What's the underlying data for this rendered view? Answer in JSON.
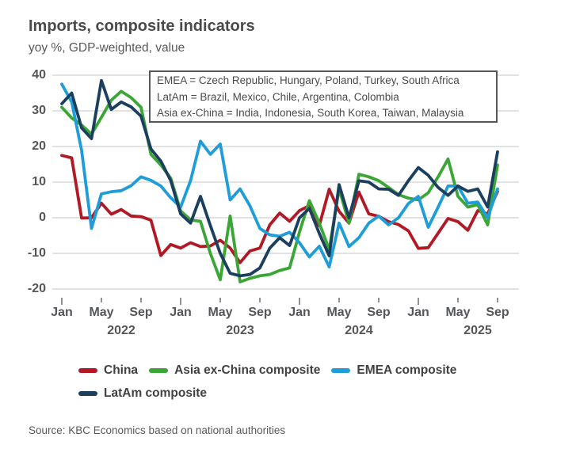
{
  "header": {
    "title": "Imports, composite indicators",
    "subtitle": "yoy %, GDP-weighted, value"
  },
  "annotation": {
    "lines": [
      "EMEA = Czech Republic, Hungary, Poland, Turkey, South Africa",
      "LatAm = Brazil, Mexico, Chile, Argentina, Colombia",
      "Asia ex-China = India, Indonesia, South Korea, Taiwan, Malaysia"
    ]
  },
  "axis": {
    "y_tick_labels": [
      "40",
      "30",
      "20",
      "10",
      "0",
      "-10",
      "-20"
    ],
    "month_tick_labels": [
      "Jan",
      "May",
      "Sep"
    ],
    "year_labels": [
      "2022",
      "2023",
      "2024",
      "2025"
    ]
  },
  "legend": {
    "items": [
      {
        "label": "China",
        "series": "china"
      },
      {
        "label": "Asia ex-China composite",
        "series": "asia"
      },
      {
        "label": "EMEA composite",
        "series": "emea"
      },
      {
        "label": "LatAm composite",
        "series": "latam"
      }
    ]
  },
  "source": {
    "text": "Source: KBC Economics based on national authorities"
  },
  "colors": {
    "china": "#b11a25",
    "asia": "#3aa635",
    "emea": "#1f9dd9",
    "latam": "#1c3f60",
    "grid": "#d8d8d9",
    "axis_text": "#55565a"
  },
  "chart_data": {
    "type": "line",
    "title": "Imports, composite indicators",
    "ylabel": "yoy %, GDP-weighted, value",
    "ylim": [
      -20,
      40
    ],
    "ytick_step": 10,
    "grid": "horizontal",
    "legend_position": "bottom",
    "months": [
      "2022-01",
      "2022-02",
      "2022-03",
      "2022-04",
      "2022-05",
      "2022-06",
      "2022-07",
      "2022-08",
      "2022-09",
      "2022-10",
      "2022-11",
      "2022-12",
      "2023-01",
      "2023-02",
      "2023-03",
      "2023-04",
      "2023-05",
      "2023-06",
      "2023-07",
      "2023-08",
      "2023-09",
      "2023-10",
      "2023-11",
      "2023-12",
      "2024-01",
      "2024-02",
      "2024-03",
      "2024-04",
      "2024-05",
      "2024-06",
      "2024-07",
      "2024-08",
      "2024-09",
      "2024-10",
      "2024-11",
      "2024-12",
      "2025-01",
      "2025-02",
      "2025-03",
      "2025-04",
      "2025-05",
      "2025-06",
      "2025-07",
      "2025-08",
      "2025-09"
    ],
    "series": [
      {
        "name": "China",
        "key": "china",
        "color": "#b11a25",
        "values": [
          17.5,
          16.8,
          -0.1,
          0.0,
          4.1,
          1.0,
          2.3,
          0.5,
          0.3,
          -0.7,
          -10.6,
          -7.5,
          -8.5,
          -7.0,
          -8.1,
          -7.9,
          -6.3,
          -8.5,
          -12.6,
          -9.3,
          -8.5,
          -2.0,
          1.3,
          -1.0,
          2.0,
          3.4,
          -2.2,
          8.0,
          1.8,
          -1.5,
          7.2,
          1.1,
          0.4,
          -1.1,
          -1.9,
          -3.7,
          -8.6,
          -8.4,
          -4.3,
          -0.2,
          -1.1,
          -3.5,
          2.0,
          1.1,
          7.4
        ]
      },
      {
        "name": "Asia ex-China composite",
        "key": "asia",
        "color": "#3aa635",
        "values": [
          31.0,
          28.0,
          26.0,
          23.5,
          28.2,
          33.0,
          35.5,
          33.7,
          31.0,
          17.8,
          14.8,
          11.1,
          1.9,
          -0.6,
          -1.0,
          -10.0,
          -17.4,
          0.5,
          -18.0,
          -17.0,
          -16.3,
          -15.9,
          -14.8,
          -14.1,
          -4.0,
          4.8,
          -1.5,
          -8.9,
          8.1,
          -1.5,
          12.2,
          11.5,
          10.4,
          8.5,
          6.5,
          5.5,
          5.0,
          7.0,
          11.5,
          16.5,
          6.0,
          3.0,
          3.7,
          -2.0,
          14.8
        ]
      },
      {
        "name": "EMEA composite",
        "key": "emea",
        "color": "#1f9dd9",
        "values": [
          37.5,
          32.5,
          18.9,
          -3.0,
          6.7,
          7.3,
          7.6,
          9.0,
          11.5,
          10.5,
          8.9,
          5.6,
          3.0,
          10.4,
          21.5,
          17.8,
          20.7,
          5.0,
          8.1,
          3.3,
          -3.0,
          -4.8,
          -5.2,
          -4.1,
          -7.0,
          -11.0,
          -8.0,
          -13.8,
          -1.5,
          -8.1,
          -5.6,
          -1.5,
          0.5,
          -2.0,
          0.0,
          4.0,
          6.0,
          -2.7,
          3.0,
          8.9,
          8.9,
          4.1,
          4.4,
          0.0,
          8.1
        ]
      },
      {
        "name": "LatAm composite",
        "key": "latam",
        "color": "#1c3f60",
        "values": [
          32.0,
          35.0,
          25.2,
          22.2,
          38.5,
          30.4,
          32.5,
          31.1,
          28.5,
          19.3,
          15.9,
          10.4,
          1.1,
          -1.5,
          6.0,
          -2.2,
          -10.0,
          -15.6,
          -16.3,
          -15.9,
          -14.1,
          -8.5,
          -5.6,
          -7.8,
          0.0,
          2.6,
          -4.4,
          -10.7,
          9.3,
          0.0,
          10.4,
          10.0,
          8.1,
          8.0,
          6.3,
          10.4,
          14.1,
          11.9,
          8.5,
          6.3,
          8.9,
          7.4,
          8.1,
          3.0,
          18.5
        ]
      }
    ]
  }
}
